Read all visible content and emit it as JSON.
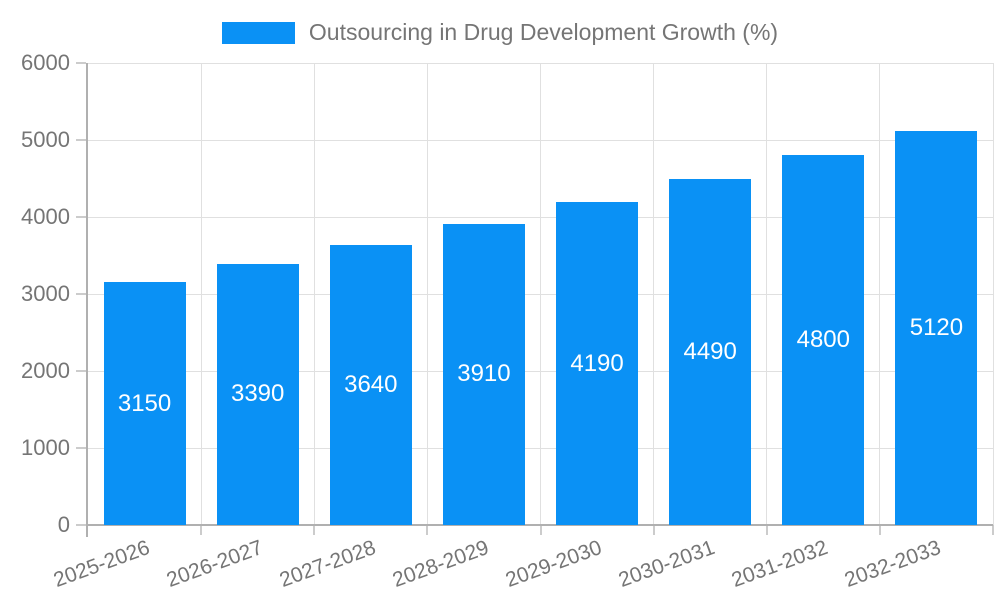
{
  "chart_data": {
    "type": "bar",
    "legend_position": "top",
    "categories": [
      "2025-2026",
      "2026-2027",
      "2027-2028",
      "2028-2029",
      "2029-2030",
      "2030-2031",
      "2031-2032",
      "2032-2033"
    ],
    "series": [
      {
        "name": "Outsourcing in Drug Development Growth (%)",
        "values": [
          3150,
          3390,
          3640,
          3910,
          4190,
          4490,
          4800,
          5120
        ]
      }
    ],
    "bar_value_labels": [
      "3150",
      "3390",
      "3640",
      "3910",
      "4190",
      "4490",
      "4800",
      "5120"
    ],
    "xlabel": "",
    "ylabel": "",
    "ylim": [
      0,
      6000
    ],
    "yticks": [
      0,
      1000,
      2000,
      3000,
      4000,
      5000,
      6000
    ],
    "grid": true,
    "colors": {
      "bar": "#0a91f5",
      "axis_text": "#757575",
      "bar_value_text": "#ffffff",
      "gridline": "#e0e0e0",
      "axis_line": "#b0b0b0",
      "tick": "#cccccc",
      "background": "#ffffff"
    }
  }
}
